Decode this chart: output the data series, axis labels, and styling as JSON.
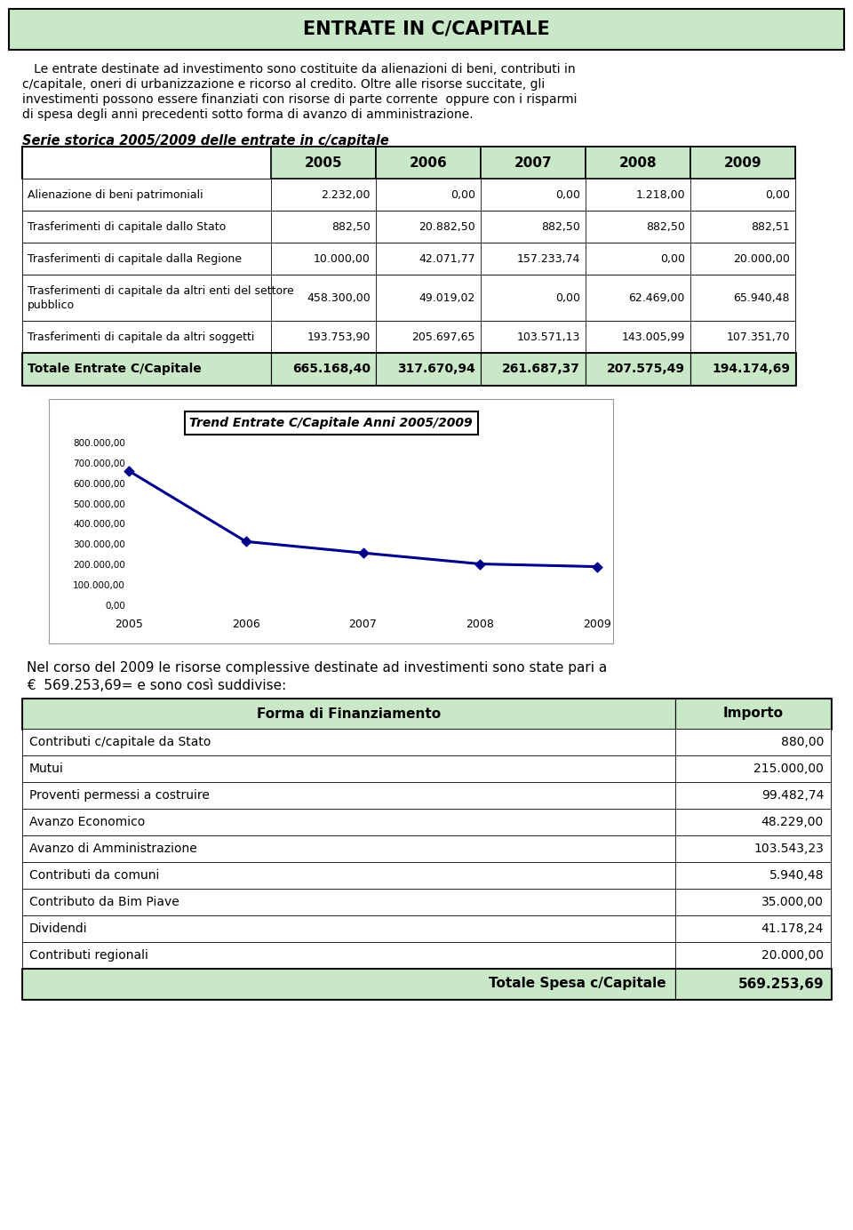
{
  "title": "ENTRATE IN C/CAPITALE",
  "intro_lines": [
    "   Le entrate destinate ad investimento sono costituite da alienazioni di beni, contributi in",
    "c/capitale, oneri di urbanizzazione e ricorso al credito. Oltre alle risorse succitate, gli",
    "investimenti possono essere finanziati con risorse di parte corrente  oppure con i risparmi",
    "di spesa degli anni precedenti sotto forma di avanzo di amministrazione."
  ],
  "section_title": "Serie storica 2005/2009 delle entrate in c/capitale",
  "table1_headers": [
    "",
    "2005",
    "2006",
    "2007",
    "2008",
    "2009"
  ],
  "table1_rows": [
    [
      "Alienazione di beni patrimoniali",
      "2.232,00",
      "0,00",
      "0,00",
      "1.218,00",
      "0,00"
    ],
    [
      "Trasferimenti di capitale dallo Stato",
      "882,50",
      "20.882,50",
      "882,50",
      "882,50",
      "882,51"
    ],
    [
      "Trasferimenti di capitale dalla Regione",
      "10.000,00",
      "42.071,77",
      "157.233,74",
      "0,00",
      "20.000,00"
    ],
    [
      "Trasferimenti di capitale da altri enti del settore\npubblico",
      "458.300,00",
      "49.019,02",
      "0,00",
      "62.469,00",
      "65.940,48"
    ],
    [
      "Trasferimenti di capitale da altri soggetti",
      "193.753,90",
      "205.697,65",
      "103.571,13",
      "143.005,99",
      "107.351,70"
    ]
  ],
  "table1_total_label": "Totale Entrate C/Capitale",
  "table1_totals": [
    "665.168,40",
    "317.670,94",
    "261.687,37",
    "207.575,49",
    "194.174,69"
  ],
  "chart_title": "Trend Entrate C/Capitale Anni 2005/2009",
  "chart_years": [
    2005,
    2006,
    2007,
    2008,
    2009
  ],
  "chart_values": [
    665168.4,
    317670.94,
    261687.37,
    207575.49,
    194174.69
  ],
  "chart_ytick_labels": [
    "0,00",
    "100.000,00",
    "200.000,00",
    "300.000,00",
    "400.000,00",
    "500.000,00",
    "600.000,00",
    "700.000,00",
    "800.000,00"
  ],
  "chart_ytick_vals": [
    0,
    100000,
    200000,
    300000,
    400000,
    500000,
    600000,
    700000,
    800000
  ],
  "paragraph2_line1": "Nel corso del 2009 le risorse complessive destinate ad investimenti sono state pari a",
  "paragraph2_line2": "€  569.253,69= e sono così suddivise:",
  "table2_header_left": "Forma di Finanziamento",
  "table2_header_right": "Importo",
  "table2_rows": [
    [
      "Contributi c/capitale da Stato",
      "880,00"
    ],
    [
      "Mutui",
      "215.000,00"
    ],
    [
      "Proventi permessi a costruire",
      "99.482,74"
    ],
    [
      "Avanzo Economico",
      "48.229,00"
    ],
    [
      "Avanzo di Amministrazione",
      "103.543,23"
    ],
    [
      "Contributi da comuni",
      "5.940,48"
    ],
    [
      "Contributo da Bim Piave",
      "35.000,00"
    ],
    [
      "Dividendi",
      "41.178,24"
    ],
    [
      "Contributi regionali",
      "20.000,00"
    ]
  ],
  "table2_total_label": "Totale Spesa c/Capitale",
  "table2_total_value": "569.253,69",
  "green_header_color": "#c8e8c8",
  "chart_line_color": "#00008B",
  "page_bg": "#ffffff"
}
